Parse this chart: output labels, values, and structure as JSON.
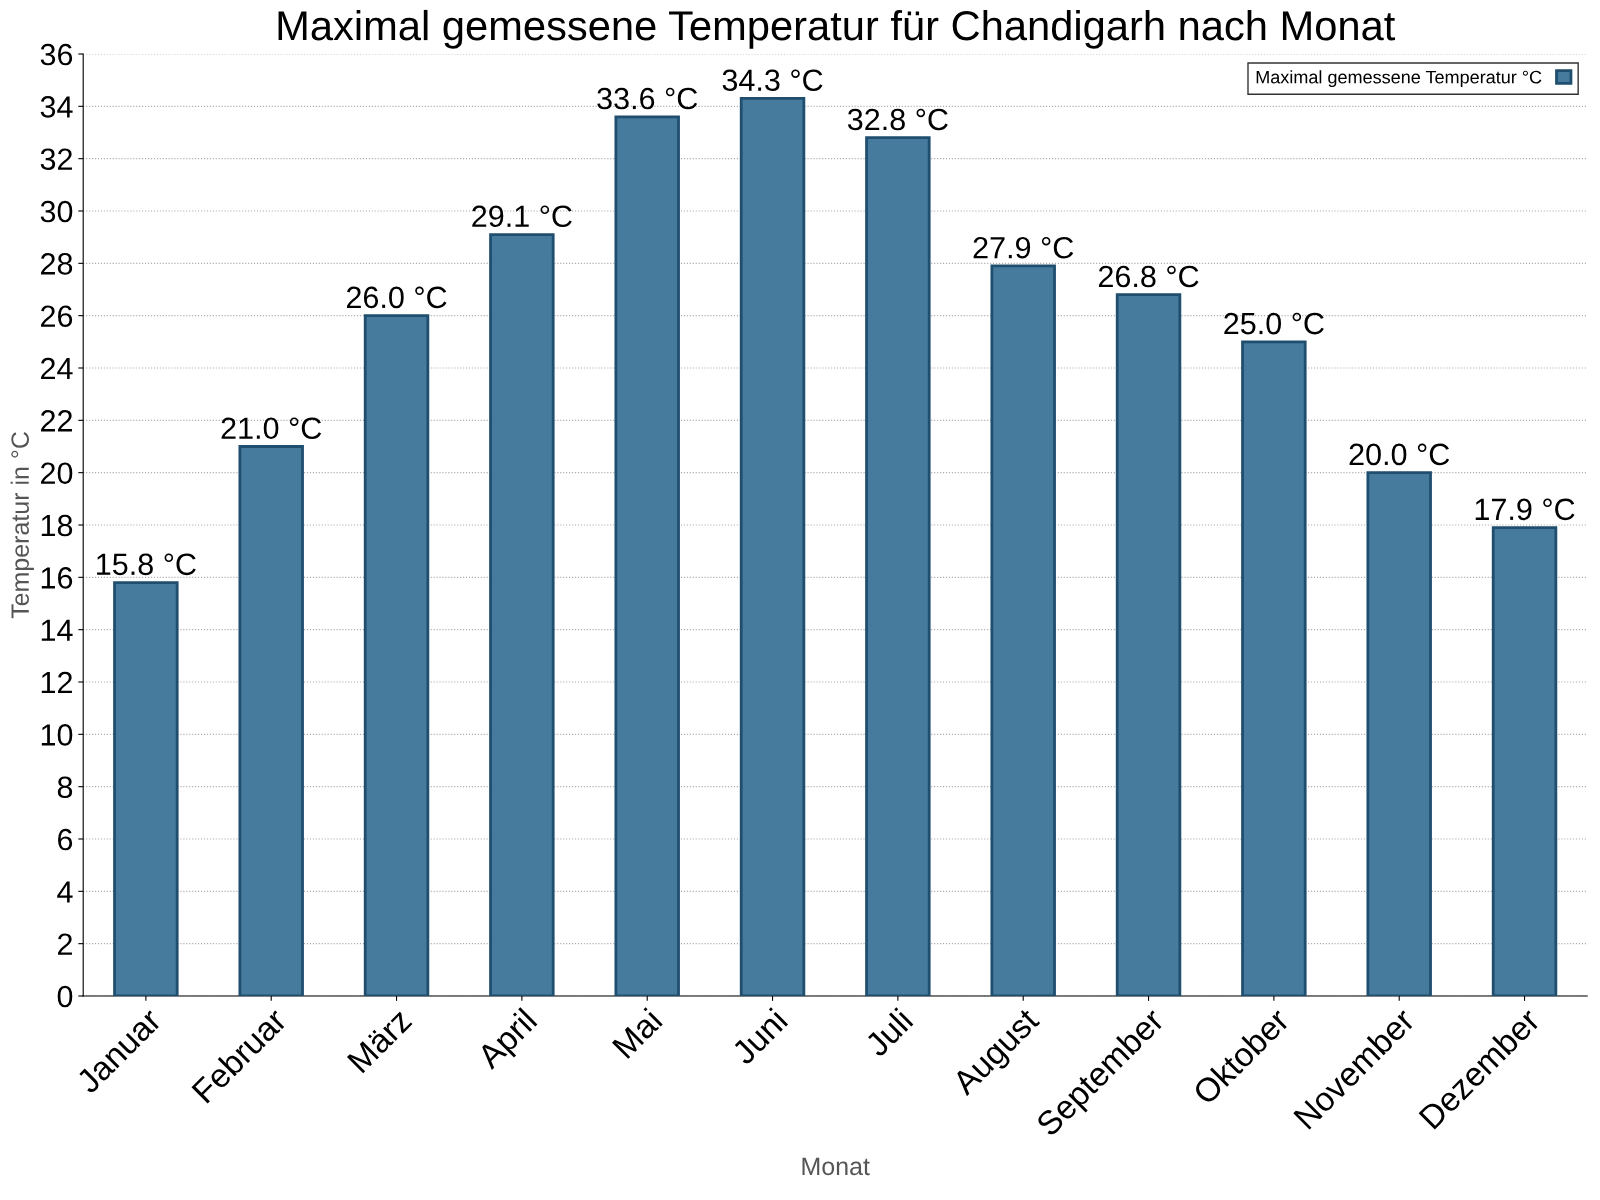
{
  "chart_data": {
    "type": "bar",
    "title": "Maximal gemessene Temperatur für Chandigarh nach Monat",
    "xlabel": "Monat",
    "ylabel": "Temperatur in °C",
    "categories": [
      "Januar",
      "Februar",
      "März",
      "April",
      "Mai",
      "Juni",
      "Juli",
      "August",
      "September",
      "Oktober",
      "November",
      "Dezember"
    ],
    "series": [
      {
        "name": "Maximal gemessene Temperatur °C",
        "color": "#467b9d",
        "values": [
          15.8,
          21.0,
          26.0,
          29.1,
          33.6,
          34.3,
          32.8,
          27.9,
          26.8,
          25.0,
          20.0,
          17.9
        ],
        "value_labels": [
          "15.8 °C",
          "21.0 °C",
          "26.0 °C",
          "29.1 °C",
          "33.6 °C",
          "34.3 °C",
          "32.8 °C",
          "27.9 °C",
          "26.8 °C",
          "25.0 °C",
          "20.0 °C",
          "17.9 °C"
        ]
      }
    ],
    "ylim": [
      0,
      36
    ],
    "yticks": [
      0,
      2,
      4,
      6,
      8,
      10,
      12,
      14,
      16,
      18,
      20,
      22,
      24,
      26,
      28,
      30,
      32,
      34,
      36
    ],
    "grid": "y",
    "legend": "top right"
  }
}
